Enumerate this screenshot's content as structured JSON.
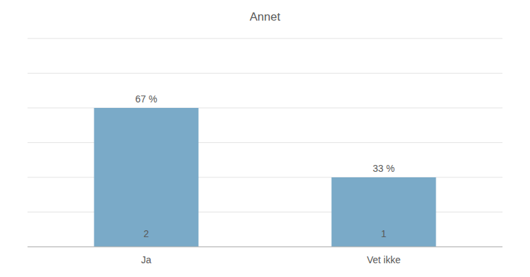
{
  "chart_data": {
    "type": "bar",
    "title": "Annet",
    "categories": [
      "Ja",
      "Vet ikke"
    ],
    "values": [
      2,
      1
    ],
    "color": "#7AAAC8",
    "annotations": [
      "67 %",
      "33 %"
    ],
    "ylim": [
      0,
      3
    ],
    "yticks": [
      0,
      0.5,
      1,
      1.5,
      2,
      2.5,
      3
    ],
    "grid": true,
    "data_labels": true,
    "tick_labels": "x"
  }
}
